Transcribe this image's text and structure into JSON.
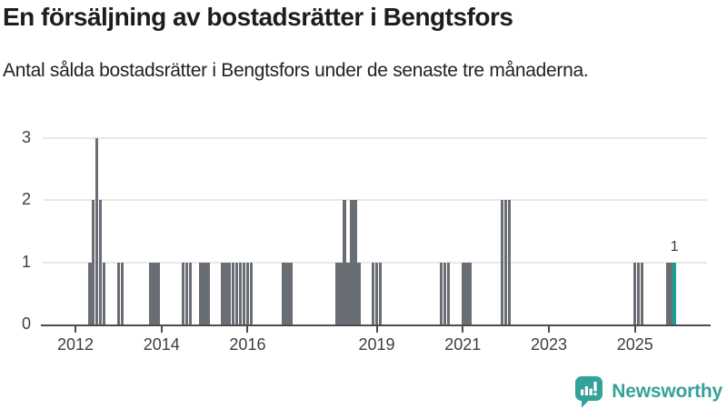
{
  "header": {
    "title": "En försäljning av bostadsrätter i Bengtsfors",
    "subtitle": "Antal sålda bostadsrätter i Bengtsfors under de senaste tre månaderna."
  },
  "chart_data": {
    "type": "bar",
    "title": "En försäljning av bostadsrätter i Bengtsfors",
    "subtitle": "Antal sålda bostadsrätter i Bengtsfors under de senaste tre månaderna.",
    "xlabel": "",
    "ylabel": "",
    "ylim": [
      0,
      3
    ],
    "yticks": [
      0,
      1,
      2,
      3
    ],
    "x_ticks": [
      "2012",
      "2014",
      "2016",
      "2019",
      "2021",
      "2023",
      "2025"
    ],
    "grid": "horizontal",
    "legend": "none",
    "bar_color": "#696d74",
    "highlight_color": "#18a098",
    "highlight_month": "2025-12",
    "annotation": {
      "text": "1",
      "month": "2025-12"
    },
    "points": [
      {
        "month": "2012-05",
        "value": 1
      },
      {
        "month": "2012-06",
        "value": 2
      },
      {
        "month": "2012-07",
        "value": 3
      },
      {
        "month": "2012-08",
        "value": 2
      },
      {
        "month": "2012-09",
        "value": 1
      },
      {
        "month": "2013-01",
        "value": 1
      },
      {
        "month": "2013-02",
        "value": 1
      },
      {
        "month": "2013-10",
        "value": 1
      },
      {
        "month": "2013-11",
        "value": 1
      },
      {
        "month": "2013-12",
        "value": 1
      },
      {
        "month": "2014-07",
        "value": 1
      },
      {
        "month": "2014-08",
        "value": 1
      },
      {
        "month": "2014-09",
        "value": 1
      },
      {
        "month": "2014-12",
        "value": 1
      },
      {
        "month": "2015-01",
        "value": 1
      },
      {
        "month": "2015-02",
        "value": 1
      },
      {
        "month": "2015-06",
        "value": 1
      },
      {
        "month": "2015-07",
        "value": 1
      },
      {
        "month": "2015-08",
        "value": 1
      },
      {
        "month": "2015-09",
        "value": 1
      },
      {
        "month": "2015-10",
        "value": 1
      },
      {
        "month": "2015-11",
        "value": 1
      },
      {
        "month": "2015-12",
        "value": 1
      },
      {
        "month": "2016-01",
        "value": 1
      },
      {
        "month": "2016-02",
        "value": 1
      },
      {
        "month": "2016-11",
        "value": 1
      },
      {
        "month": "2016-12",
        "value": 1
      },
      {
        "month": "2017-01",
        "value": 1
      },
      {
        "month": "2018-02",
        "value": 1
      },
      {
        "month": "2018-03",
        "value": 1
      },
      {
        "month": "2018-04",
        "value": 2
      },
      {
        "month": "2018-05",
        "value": 1
      },
      {
        "month": "2018-06",
        "value": 2
      },
      {
        "month": "2018-07",
        "value": 2
      },
      {
        "month": "2018-08",
        "value": 1
      },
      {
        "month": "2018-12",
        "value": 1
      },
      {
        "month": "2019-01",
        "value": 1
      },
      {
        "month": "2019-02",
        "value": 1
      },
      {
        "month": "2020-07",
        "value": 1
      },
      {
        "month": "2020-08",
        "value": 1
      },
      {
        "month": "2020-09",
        "value": 1
      },
      {
        "month": "2021-01",
        "value": 1
      },
      {
        "month": "2021-02",
        "value": 1
      },
      {
        "month": "2021-03",
        "value": 1
      },
      {
        "month": "2021-12",
        "value": 2
      },
      {
        "month": "2022-01",
        "value": 2
      },
      {
        "month": "2022-02",
        "value": 2
      },
      {
        "month": "2025-01",
        "value": 1
      },
      {
        "month": "2025-02",
        "value": 1
      },
      {
        "month": "2025-03",
        "value": 1
      },
      {
        "month": "2025-10",
        "value": 1
      },
      {
        "month": "2025-11",
        "value": 1
      },
      {
        "month": "2025-12",
        "value": 1
      }
    ]
  },
  "footer": {
    "brand": "Newsworthy",
    "brand_color": "#35a29a",
    "logo_icon": "newsworthy-speech-bubble-chart-icon"
  }
}
